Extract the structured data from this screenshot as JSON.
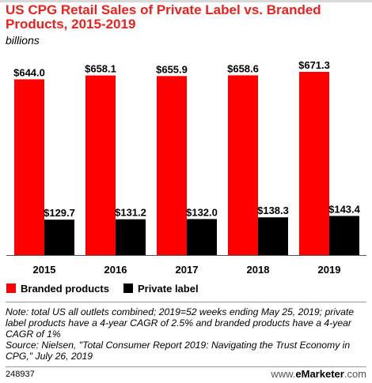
{
  "chart_data": {
    "type": "bar",
    "title": "US CPG Retail Sales of Private Label vs. Branded Products, 2015-2019",
    "subtitle": "billions",
    "categories": [
      "2015",
      "2016",
      "2017",
      "2018",
      "2019"
    ],
    "series": [
      {
        "name": "Branded products",
        "values": [
          644.0,
          658.1,
          655.9,
          658.6,
          671.3
        ],
        "labels": [
          "$644.0",
          "$658.1",
          "$655.9",
          "$658.6",
          "$671.3"
        ],
        "color": "#ff0000"
      },
      {
        "name": "Private label",
        "values": [
          129.7,
          131.2,
          132.0,
          138.3,
          143.4
        ],
        "labels": [
          "$129.7",
          "$131.2",
          "$132.0",
          "$138.3",
          "$143.4"
        ],
        "color": "#000000"
      }
    ],
    "ylim": [
      0,
      671.3
    ],
    "grid": false,
    "legend_position": "bottom-left"
  },
  "notes": [
    "Note: total US all outlets combined; 2019=52 weeks ending May 25, 2019; private label products have a 4-year CAGR of 2.5% and branded products have a 4-year CAGR of 1%",
    "Source: Nielsen, \"Total Consumer Report 2019: Navigating the Trust Economy in CPG,\" July 26, 2019"
  ],
  "footer": {
    "chart_id": "248937",
    "brand_prefix": "www.",
    "brand_name": "eMarketer",
    "brand_suffix": ".com"
  },
  "colors": {
    "title": "#e8231f",
    "branded": "#ff0000",
    "private": "#000000"
  }
}
